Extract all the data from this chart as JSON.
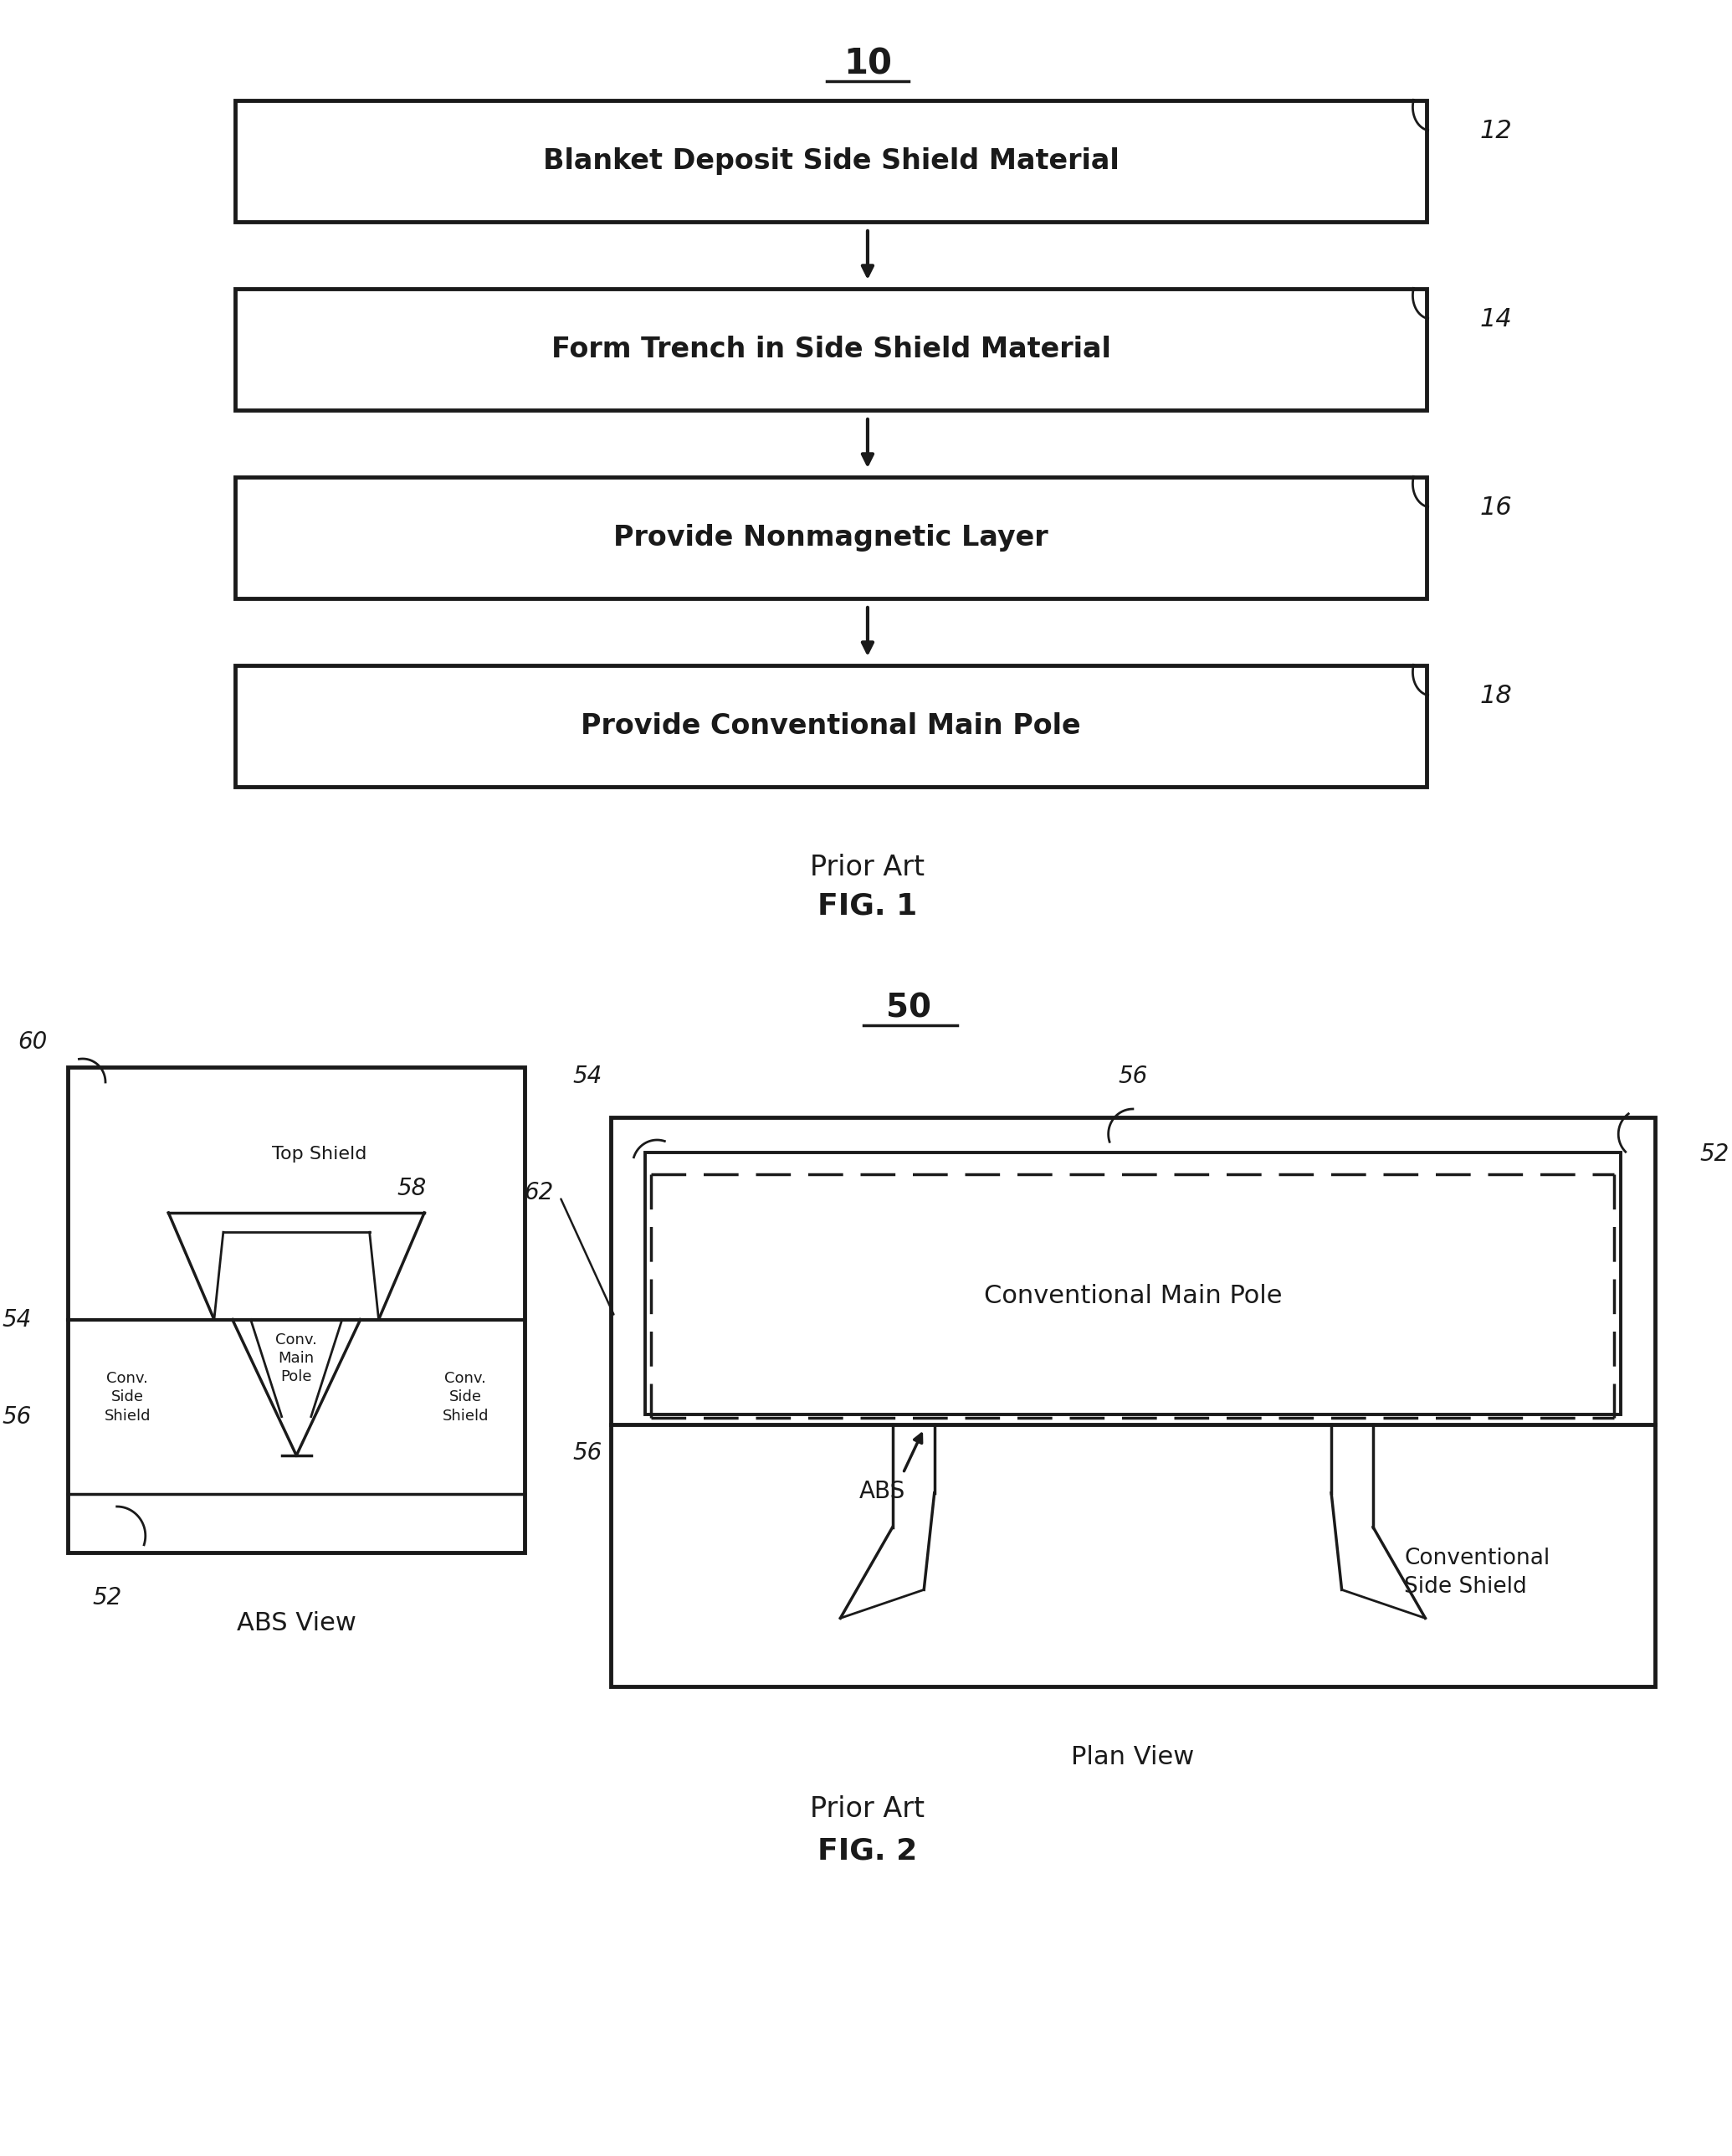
{
  "bg_color": "#ffffff",
  "line_color": "#1a1a1a",
  "fig1": {
    "title": "10",
    "boxes": [
      {
        "label": "Blanket Deposit Side Shield Material",
        "ref": "12"
      },
      {
        "label": "Form Trench in Side Shield Material",
        "ref": "14"
      },
      {
        "label": "Provide Nonmagnetic Layer",
        "ref": "16"
      },
      {
        "label": "Provide Conventional Main Pole",
        "ref": "18"
      }
    ],
    "caption_line1": "Prior Art",
    "caption_line2": "FIG. 1"
  },
  "fig2": {
    "title": "50",
    "caption_line1": "Prior Art",
    "caption_line2": "FIG. 2"
  }
}
